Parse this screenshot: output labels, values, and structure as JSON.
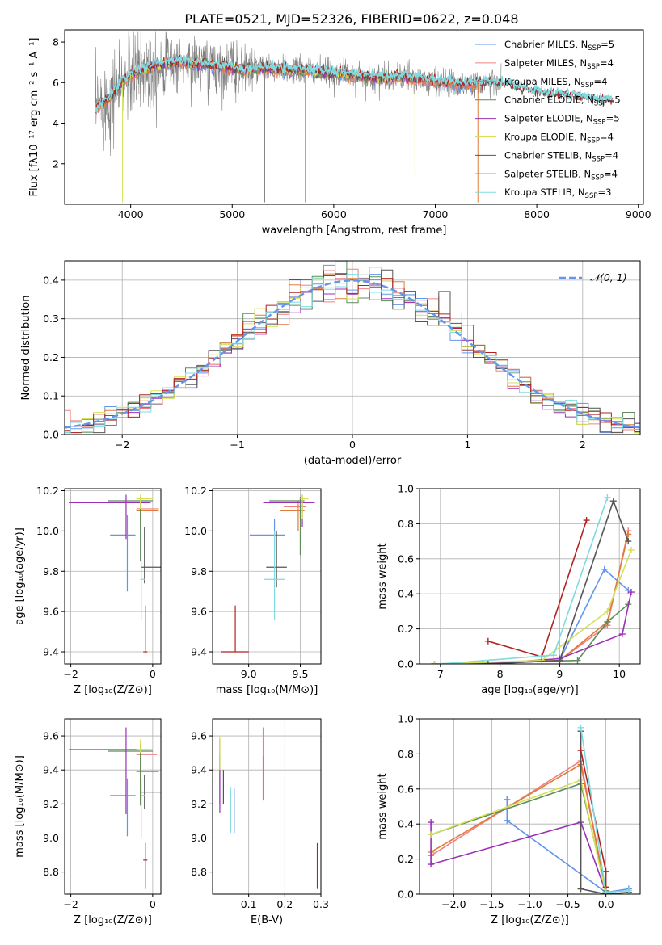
{
  "figure_title": "PLATE=0521, MJD=52326, FIBERID=0622, z=0.048",
  "colors": {
    "chabrier_miles": "#6495ed",
    "salpeter_miles": "#f08080",
    "kroupa_miles": "#e07b39",
    "chabrier_elodie": "#5b8c5a",
    "salpeter_elodie": "#9b30b5",
    "kroupa_elodie": "#d4e157",
    "chabrier_stelib": "#555555",
    "salpeter_stelib": "#b22222",
    "kroupa_stelib": "#7fdbe0",
    "data": "#808080",
    "normal": "#6495ed"
  },
  "chart_data": [
    {
      "id": "spectrum",
      "type": "line",
      "xlabel": "wavelength [Angstrom, rest frame]",
      "ylabel": "Flux [fλ10⁻¹⁷ erg cm⁻² s⁻¹ A⁻¹]",
      "xlim": [
        3350,
        9050
      ],
      "ylim": [
        0,
        8.6
      ],
      "xticks": [
        4000,
        5000,
        6000,
        7000,
        8000,
        9000
      ],
      "yticks": [
        2,
        4,
        6,
        8
      ],
      "legend_position": "top-right",
      "legend": [
        {
          "label": "Chabrier MILES, NSSP=5",
          "color_key": "chabrier_miles"
        },
        {
          "label": "Salpeter MILES, NSSP=4",
          "color_key": "salpeter_miles"
        },
        {
          "label": "Kroupa MILES, NSSP=4",
          "color_key": "kroupa_miles"
        },
        {
          "label": "Chabrier ELODIE, NSSP=5",
          "color_key": "chabrier_elodie"
        },
        {
          "label": "Salpeter ELODIE, NSSP=5",
          "color_key": "salpeter_elodie"
        },
        {
          "label": "Kroupa ELODIE, NSSP=4",
          "color_key": "kroupa_elodie"
        },
        {
          "label": "Chabrier STELIB, NSSP=4",
          "color_key": "chabrier_stelib"
        },
        {
          "label": "Salpeter STELIB, NSSP=4",
          "color_key": "salpeter_stelib"
        },
        {
          "label": "Kroupa STELIB, NSSP=3",
          "color_key": "kroupa_stelib"
        }
      ],
      "continuum": {
        "x": [
          3650,
          3700,
          3800,
          3900,
          4000,
          4100,
          4300,
          4500,
          4700,
          4900,
          5100,
          5300,
          5500,
          5700,
          5900,
          6100,
          6300,
          6500,
          6700,
          6900,
          7100,
          7300,
          7500,
          7700,
          7900,
          8100,
          8300,
          8500,
          8800
        ],
        "y": [
          4.6,
          4.9,
          5.3,
          5.9,
          6.4,
          6.6,
          6.9,
          7.0,
          6.9,
          6.8,
          6.6,
          6.7,
          6.6,
          6.6,
          6.5,
          6.4,
          6.3,
          6.2,
          6.3,
          6.1,
          6.0,
          5.9,
          6.0,
          5.9,
          5.6,
          5.4,
          5.3,
          5.2,
          5.0
        ]
      },
      "data_dropouts": [
        {
          "x": 5320,
          "y": 0.1,
          "series": "data"
        },
        {
          "x": 5720,
          "y": 0.1,
          "series": "kroupa_miles"
        },
        {
          "x": 6800,
          "y": 1.5,
          "series": "kroupa_elodie"
        },
        {
          "x": 7420,
          "y": 0.1,
          "series": "kroupa_miles"
        },
        {
          "x": 3920,
          "y": 0.1,
          "series": "kroupa_elodie"
        }
      ]
    },
    {
      "id": "residuals",
      "type": "histogram",
      "xlabel": "(data-model)/error",
      "ylabel": "Normed distribution",
      "xlim": [
        -2.5,
        2.5
      ],
      "ylim": [
        0,
        0.45
      ],
      "xticks": [
        -2,
        -1,
        0,
        1,
        2
      ],
      "yticks": [
        0.0,
        0.1,
        0.2,
        0.3,
        0.4
      ],
      "grid": true,
      "bin_width": 0.1,
      "legend": [
        {
          "label": "𝒩(0, 1)",
          "color_key": "normal",
          "style": "dashed"
        }
      ],
      "legend_position": "top-right"
    },
    {
      "id": "age_vs_Z",
      "type": "errorbar",
      "xlabel": "Z [log₁₀(Z/Z⊙)]",
      "ylabel": "age  [log₁₀(age/yr)]",
      "xlim": [
        -2.15,
        0.2
      ],
      "ylim": [
        9.34,
        10.21
      ],
      "xticks": [
        -2,
        0
      ],
      "yticks": [
        9.4,
        9.6,
        9.8,
        10.0,
        10.2
      ],
      "grid": true,
      "points": [
        {
          "series": "chabrier_miles",
          "x": -0.62,
          "xerr": [
            0.42,
            0.2
          ],
          "y": 9.98,
          "yerr": [
            0.28,
            0.1
          ]
        },
        {
          "series": "salpeter_miles",
          "x": -0.3,
          "xerr": [
            0.1,
            0.45
          ],
          "y": 10.11,
          "yerr": [
            0.04,
            0.04
          ]
        },
        {
          "series": "kroupa_miles",
          "x": -0.3,
          "xerr": [
            0.1,
            0.45
          ],
          "y": 10.1,
          "yerr": [
            0.05,
            0.05
          ]
        },
        {
          "series": "chabrier_elodie",
          "x": -0.3,
          "xerr": [
            0.8,
            0.3
          ],
          "y": 10.15,
          "yerr": [
            0.3,
            0.02
          ]
        },
        {
          "series": "salpeter_elodie",
          "x": -0.65,
          "xerr": [
            1.4,
            0.6
          ],
          "y": 10.14,
          "yerr": [
            0.18,
            0.04
          ]
        },
        {
          "series": "kroupa_elodie",
          "x": -0.3,
          "xerr": [
            0.1,
            0.3
          ],
          "y": 10.16,
          "yerr": [
            0.05,
            0.02
          ]
        },
        {
          "series": "chabrier_stelib",
          "x": -0.2,
          "xerr": [
            0.08,
            0.45
          ],
          "y": 9.82,
          "yerr": [
            0.08,
            0.2
          ]
        },
        {
          "series": "salpeter_stelib",
          "x": -0.18,
          "xerr": [
            0.05,
            0.05
          ],
          "y": 9.4,
          "yerr": [
            0.0,
            0.23
          ]
        },
        {
          "series": "kroupa_stelib",
          "x": -0.28,
          "xerr": [
            0.02,
            0.1
          ],
          "y": 9.76,
          "yerr": [
            0.2,
            0.1
          ]
        }
      ]
    },
    {
      "id": "age_vs_mass",
      "type": "errorbar",
      "xlabel": "mass [log₁₀(M/M⊙)]",
      "ylabel": "",
      "xlim": [
        8.65,
        9.7
      ],
      "ylim": [
        9.34,
        10.21
      ],
      "xticks": [
        9.0,
        9.5
      ],
      "yticks": [
        9.4,
        9.6,
        9.8,
        10.0,
        10.2
      ],
      "grid": true,
      "points": [
        {
          "series": "chabrier_miles",
          "x": 9.25,
          "xerr": [
            0.24,
            0.1
          ],
          "y": 9.98,
          "yerr": [
            0.08,
            0.08
          ]
        },
        {
          "series": "salpeter_miles",
          "x": 9.5,
          "xerr": [
            0.16,
            0.06
          ],
          "y": 10.12,
          "yerr": [
            0.06,
            0.04
          ]
        },
        {
          "series": "kroupa_miles",
          "x": 9.48,
          "xerr": [
            0.18,
            0.06
          ],
          "y": 10.1,
          "yerr": [
            0.1,
            0.05
          ]
        },
        {
          "series": "chabrier_elodie",
          "x": 9.5,
          "xerr": [
            0.3,
            0.04
          ],
          "y": 10.15,
          "yerr": [
            0.27,
            0.02
          ]
        },
        {
          "series": "salpeter_elodie",
          "x": 9.52,
          "xerr": [
            0.38,
            0.12
          ],
          "y": 10.14,
          "yerr": [
            0.12,
            0.04
          ]
        },
        {
          "series": "kroupa_elodie",
          "x": 9.52,
          "xerr": [
            0.02,
            0.06
          ],
          "y": 10.16,
          "yerr": [
            0.1,
            0.02
          ]
        },
        {
          "series": "chabrier_stelib",
          "x": 9.27,
          "xerr": [
            0.1,
            0.1
          ],
          "y": 9.82,
          "yerr": [
            0.1,
            0.18
          ]
        },
        {
          "series": "salpeter_stelib",
          "x": 8.87,
          "xerr": [
            0.14,
            0.13
          ],
          "y": 9.4,
          "yerr": [
            0.0,
            0.23
          ]
        },
        {
          "series": "kroupa_stelib",
          "x": 9.25,
          "xerr": [
            0.1,
            0.1
          ],
          "y": 9.76,
          "yerr": [
            0.2,
            0.24
          ]
        }
      ]
    },
    {
      "id": "weight_vs_age",
      "type": "line",
      "xlabel": "age  [log₁₀(age/yr)]",
      "ylabel": "mass weight",
      "xlim": [
        6.65,
        10.35
      ],
      "ylim": [
        0,
        1.0
      ],
      "xticks": [
        7,
        8,
        9,
        10
      ],
      "yticks": [
        0.0,
        0.2,
        0.4,
        0.6,
        0.8,
        1.0
      ],
      "grid": true,
      "series": [
        {
          "key": "chabrier_miles",
          "x": [
            7.8,
            9.0,
            9.75,
            10.15
          ],
          "y": [
            0.0,
            0.02,
            0.54,
            0.42
          ]
        },
        {
          "key": "salpeter_miles",
          "x": [
            7.8,
            9.0,
            9.8,
            10.15
          ],
          "y": [
            0.0,
            0.02,
            0.22,
            0.76
          ]
        },
        {
          "key": "kroupa_miles",
          "x": [
            6.9,
            9.0,
            9.8,
            10.15
          ],
          "y": [
            0.0,
            0.02,
            0.24,
            0.74
          ]
        },
        {
          "key": "chabrier_elodie",
          "x": [
            6.9,
            9.3,
            9.8,
            10.15
          ],
          "y": [
            0.0,
            0.02,
            0.24,
            0.34
          ]
        },
        {
          "key": "salpeter_elodie",
          "x": [
            7.7,
            9.0,
            10.05,
            10.2
          ],
          "y": [
            0.0,
            0.03,
            0.17,
            0.41
          ]
        },
        {
          "key": "kroupa_elodie",
          "x": [
            6.9,
            8.7,
            9.8,
            10.2
          ],
          "y": [
            0.0,
            0.02,
            0.3,
            0.65
          ]
        },
        {
          "key": "chabrier_stelib",
          "x": [
            7.8,
            9.0,
            9.9,
            10.15
          ],
          "y": [
            0.0,
            0.02,
            0.93,
            0.7
          ]
        },
        {
          "key": "salpeter_stelib",
          "x": [
            7.8,
            8.7,
            9.45
          ],
          "y": [
            0.13,
            0.04,
            0.82
          ]
        },
        {
          "key": "kroupa_stelib",
          "x": [
            7.0,
            8.9,
            9.8
          ],
          "y": [
            0.0,
            0.05,
            0.95
          ]
        }
      ]
    },
    {
      "id": "mass_vs_Z",
      "type": "errorbar",
      "xlabel": "Z [log₁₀(Z/Z⊙)]",
      "ylabel": "mass [log₁₀(M/M⊙)]",
      "xlim": [
        -2.15,
        0.2
      ],
      "ylim": [
        8.67,
        9.7
      ],
      "xticks": [
        -2,
        0
      ],
      "yticks": [
        8.8,
        9.0,
        9.2,
        9.4,
        9.6
      ],
      "grid": true,
      "points": [
        {
          "series": "chabrier_miles",
          "x": -0.62,
          "xerr": [
            0.42,
            0.2
          ],
          "y": 9.25,
          "yerr": [
            0.24,
            0.1
          ]
        },
        {
          "series": "salpeter_miles",
          "x": -0.3,
          "xerr": [
            0.1,
            0.4
          ],
          "y": 9.49,
          "yerr": [
            0.16,
            0.06
          ]
        },
        {
          "series": "kroupa_miles",
          "x": -0.3,
          "xerr": [
            0.1,
            0.45
          ],
          "y": 9.39,
          "yerr": [
            0.18,
            0.05
          ]
        },
        {
          "series": "chabrier_elodie",
          "x": -0.3,
          "xerr": [
            0.8,
            0.3
          ],
          "y": 9.51,
          "yerr": [
            0.32,
            0.04
          ]
        },
        {
          "series": "salpeter_elodie",
          "x": -0.65,
          "xerr": [
            1.4,
            0.6
          ],
          "y": 9.52,
          "yerr": [
            0.38,
            0.13
          ]
        },
        {
          "series": "kroupa_elodie",
          "x": -0.3,
          "xerr": [
            0.1,
            0.3
          ],
          "y": 9.52,
          "yerr": [
            0.02,
            0.06
          ]
        },
        {
          "series": "chabrier_stelib",
          "x": -0.2,
          "xerr": [
            0.08,
            0.45
          ],
          "y": 9.27,
          "yerr": [
            0.1,
            0.1
          ]
        },
        {
          "series": "salpeter_stelib",
          "x": -0.18,
          "xerr": [
            0.05,
            0.05
          ],
          "y": 8.87,
          "yerr": [
            0.17,
            0.1
          ]
        },
        {
          "series": "kroupa_stelib",
          "x": -0.28,
          "xerr": [
            0.02,
            0.1
          ],
          "y": 9.25,
          "yerr": [
            0.25,
            0.1
          ]
        }
      ]
    },
    {
      "id": "mass_vs_ebv",
      "type": "errorbar",
      "xlabel": "E(B-V)",
      "ylabel": "",
      "xlim": [
        0.0,
        0.3
      ],
      "ylim": [
        8.67,
        9.7
      ],
      "xticks": [
        0.1,
        0.2,
        0.3
      ],
      "yticks": [
        8.8,
        9.0,
        9.2,
        9.4,
        9.6
      ],
      "grid": true,
      "points": [
        {
          "series": "chabrier_miles",
          "x": 0.06,
          "yerr": [
            0.16,
            0.1
          ],
          "y": 9.19
        },
        {
          "series": "salpeter_miles",
          "x": 0.14,
          "yerr": [
            0.16,
            0.1
          ],
          "y": 9.55
        },
        {
          "series": "kroupa_miles",
          "x": 0.14,
          "yerr": [
            0.16,
            0.1
          ],
          "y": 9.38
        },
        {
          "series": "chabrier_elodie",
          "x": 0.02,
          "yerr": [
            0.2,
            0.1
          ],
          "y": 9.4
        },
        {
          "series": "salpeter_elodie",
          "x": 0.02,
          "yerr": [
            0.3,
            0.13
          ],
          "y": 9.45
        },
        {
          "series": "kroupa_elodie",
          "x": 0.02,
          "yerr": [
            0.1,
            0.1
          ],
          "y": 9.5
        },
        {
          "series": "chabrier_stelib",
          "x": 0.03,
          "yerr": [
            0.1,
            0.1
          ],
          "y": 9.3
        },
        {
          "series": "salpeter_stelib",
          "x": 0.29,
          "yerr": [
            0.17,
            0.1
          ],
          "y": 8.87
        },
        {
          "series": "kroupa_stelib",
          "x": 0.05,
          "yerr": [
            0.17,
            0.1
          ],
          "y": 9.2
        }
      ]
    },
    {
      "id": "weight_vs_Z",
      "type": "line",
      "xlabel": "Z [log₁₀(Z/Z⊙)]",
      "ylabel": "mass weight",
      "xlim": [
        -2.45,
        0.45
      ],
      "ylim": [
        0,
        1.0
      ],
      "xticks": [
        -2.0,
        -1.5,
        -1.0,
        -0.5,
        0.0
      ],
      "yticks": [
        0.0,
        0.2,
        0.4,
        0.6,
        0.8,
        1.0
      ],
      "grid": true,
      "series": [
        {
          "key": "chabrier_miles",
          "x": [
            -1.3,
            -1.3,
            0.0,
            0.3
          ],
          "y": [
            0.54,
            0.42,
            0.01,
            0.03
          ]
        },
        {
          "key": "salpeter_miles",
          "x": [
            -2.3,
            -0.33,
            0.0
          ],
          "y": [
            0.22,
            0.76,
            0.01
          ]
        },
        {
          "key": "kroupa_miles",
          "x": [
            -2.3,
            -0.33,
            0.0
          ],
          "y": [
            0.24,
            0.74,
            0.01
          ]
        },
        {
          "key": "chabrier_elodie",
          "x": [
            -2.3,
            -0.33,
            0.0
          ],
          "y": [
            0.34,
            0.63,
            0.02
          ]
        },
        {
          "key": "salpeter_elodie",
          "x": [
            -2.3,
            -2.3,
            -0.33,
            0.0
          ],
          "y": [
            0.41,
            0.17,
            0.41,
            0.01
          ]
        },
        {
          "key": "kroupa_elodie",
          "x": [
            -2.3,
            -0.33,
            0.0,
            0.3
          ],
          "y": [
            0.34,
            0.65,
            0.0,
            0.01
          ]
        },
        {
          "key": "chabrier_stelib",
          "x": [
            -0.33,
            -0.33,
            0.0,
            0.3
          ],
          "y": [
            0.93,
            0.03,
            0.0,
            0.01
          ]
        },
        {
          "key": "salpeter_stelib",
          "x": [
            -0.33,
            0.0,
            0.0
          ],
          "y": [
            0.82,
            0.13,
            0.04
          ]
        },
        {
          "key": "kroupa_stelib",
          "x": [
            -0.33,
            0.0,
            0.3
          ],
          "y": [
            0.95,
            0.01,
            0.02
          ]
        }
      ]
    }
  ]
}
